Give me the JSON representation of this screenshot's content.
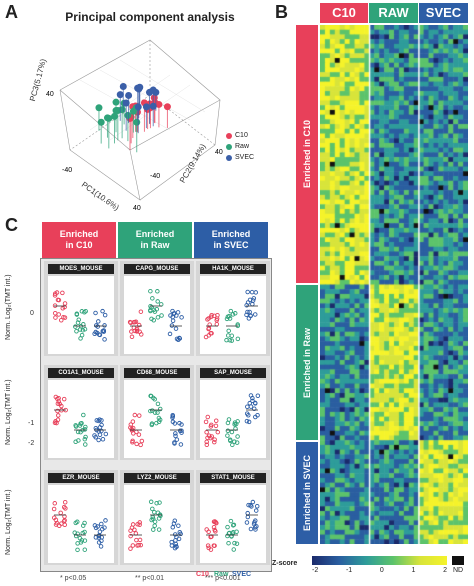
{
  "panel_labels": {
    "a": "A",
    "b": "B",
    "c": "C"
  },
  "pca": {
    "title": "Principal component analysis",
    "axes": {
      "pc1": "PC1(10.6%)",
      "pc2": "PC2(9.14%)",
      "pc3": "PC3(5.17%)"
    },
    "ticks": {
      "pc1": [
        "-40",
        "40"
      ],
      "pc2": [
        "-40",
        "40"
      ],
      "pc3": [
        "40"
      ]
    },
    "legend": [
      {
        "name": "C10",
        "color": "#e8405a"
      },
      {
        "name": "Raw",
        "color": "#2fa37a"
      },
      {
        "name": "SVEC",
        "color": "#3b5fa8"
      }
    ]
  },
  "heatmap": {
    "headers": [
      {
        "label": "C10",
        "color": "#e8405a"
      },
      {
        "label": "RAW",
        "color": "#2fa37a"
      },
      {
        "label": "SVEC",
        "color": "#2d5ea6"
      }
    ],
    "groups": [
      {
        "label": "Enriched in C10",
        "color": "#e8405a"
      },
      {
        "label": "Enriched in Raw",
        "color": "#2fa37a"
      },
      {
        "label": "Enriched in SVEC",
        "color": "#2d5ea6"
      }
    ],
    "colorbar": {
      "title": "Z-score",
      "ticks": [
        "-2",
        "-1",
        "0",
        "1",
        "2"
      ],
      "nd": "ND"
    }
  },
  "panel_c": {
    "group_headers": [
      {
        "line1": "Enriched",
        "line2": "in C10",
        "color": "#e8405a"
      },
      {
        "line1": "Enriched",
        "line2": "in Raw",
        "color": "#2fa37a"
      },
      {
        "line1": "Enriched",
        "line2": "in SVEC",
        "color": "#2d5ea6"
      }
    ],
    "ylabel": "Norm. Log₂(TMT int.)",
    "categories": [
      "C10",
      "Raw",
      "SVEC"
    ],
    "proteins": [
      "MOES_MOUSE",
      "CAPG_MOUSE",
      "HA1K_MOUSE",
      "CO1A1_MOUSE",
      "CD68_MOUSE",
      "SAP_MOUSE",
      "EZR_MOUSE",
      "LYZ2_MOUSE",
      "STAT1_MOUSE"
    ],
    "yticks": [
      "0",
      "-1",
      "-2"
    ],
    "significance": [
      "* p<0.05",
      "** p<0.01",
      "*** p<0.001"
    ]
  },
  "chart_data": {
    "type": "scatter",
    "title": "Principal component analysis",
    "xlabel": "PC1(10.6%)",
    "ylabel": "PC3(5.17%)",
    "series": [
      {
        "name": "C10",
        "color": "#e8405a"
      },
      {
        "name": "Raw",
        "color": "#2fa37a"
      },
      {
        "name": "SVEC",
        "color": "#3b5fa8"
      }
    ]
  }
}
